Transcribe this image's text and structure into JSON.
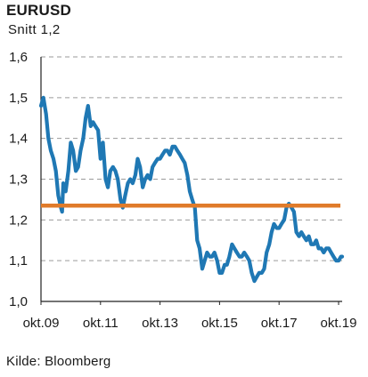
{
  "header": {
    "title": "EURUSD",
    "subtitle": "Snitt 1,2"
  },
  "footer": {
    "source": "Kilde: Bloomberg"
  },
  "chart_data": {
    "type": "line",
    "title": "EURUSD",
    "subtitle": "Snitt 1,2",
    "xlabel": "",
    "ylabel": "",
    "ylim": [
      1.0,
      1.6
    ],
    "xlim": [
      2009.75,
      2019.87
    ],
    "yticks": [
      1.0,
      1.1,
      1.2,
      1.3,
      1.4,
      1.5,
      1.6
    ],
    "ytick_labels": [
      "1,0",
      "1,1",
      "1,2",
      "1,3",
      "1,4",
      "1,5",
      "1,6"
    ],
    "xticks": [
      2009.75,
      2011.75,
      2013.75,
      2015.75,
      2017.75,
      2019.75
    ],
    "xtick_labels": [
      "okt.09",
      "okt.11",
      "okt.13",
      "okt.15",
      "okt.17",
      "okt.19"
    ],
    "grid": "horizontal dashed",
    "legend": "none",
    "colors": {
      "series": "#1f78b4",
      "average": "#e07b2a"
    },
    "series": [
      {
        "x": [
          2009.75,
          2009.83,
          2009.92,
          2010.0,
          2010.08,
          2010.17,
          2010.25,
          2010.33,
          2010.42,
          2010.46,
          2010.5,
          2010.58,
          2010.67,
          2010.75,
          2010.83,
          2010.92,
          2011.0,
          2011.08,
          2011.17,
          2011.25,
          2011.33,
          2011.42,
          2011.5,
          2011.58,
          2011.67,
          2011.75,
          2011.83,
          2011.92,
          2012.0,
          2012.08,
          2012.17,
          2012.25,
          2012.33,
          2012.42,
          2012.5,
          2012.58,
          2012.67,
          2012.75,
          2012.83,
          2012.92,
          2013.0,
          2013.08,
          2013.17,
          2013.25,
          2013.33,
          2013.42,
          2013.5,
          2013.58,
          2013.67,
          2013.75,
          2013.83,
          2013.92,
          2014.0,
          2014.08,
          2014.17,
          2014.25,
          2014.33,
          2014.42,
          2014.5,
          2014.58,
          2014.67,
          2014.75,
          2014.83,
          2014.92,
          2015.0,
          2015.08,
          2015.17,
          2015.25,
          2015.33,
          2015.42,
          2015.5,
          2015.58,
          2015.67,
          2015.75,
          2015.83,
          2015.92,
          2016.0,
          2016.08,
          2016.17,
          2016.25,
          2016.33,
          2016.42,
          2016.5,
          2016.58,
          2016.67,
          2016.75,
          2016.83,
          2016.92,
          2017.0,
          2017.08,
          2017.17,
          2017.25,
          2017.33,
          2017.42,
          2017.5,
          2017.58,
          2017.67,
          2017.75,
          2017.83,
          2017.92,
          2018.0,
          2018.08,
          2018.17,
          2018.25,
          2018.33,
          2018.42,
          2018.5,
          2018.58,
          2018.67,
          2018.75,
          2018.83,
          2018.92,
          2019.0,
          2019.08,
          2019.17,
          2019.25,
          2019.33,
          2019.42,
          2019.5,
          2019.58,
          2019.67,
          2019.75,
          2019.83,
          2019.87
        ],
        "values": [
          1.48,
          1.5,
          1.46,
          1.4,
          1.37,
          1.35,
          1.32,
          1.26,
          1.23,
          1.22,
          1.29,
          1.27,
          1.32,
          1.39,
          1.37,
          1.32,
          1.33,
          1.37,
          1.4,
          1.45,
          1.48,
          1.43,
          1.44,
          1.43,
          1.42,
          1.35,
          1.39,
          1.3,
          1.28,
          1.32,
          1.33,
          1.32,
          1.3,
          1.25,
          1.23,
          1.26,
          1.29,
          1.3,
          1.29,
          1.31,
          1.35,
          1.33,
          1.28,
          1.3,
          1.31,
          1.3,
          1.33,
          1.34,
          1.35,
          1.35,
          1.36,
          1.37,
          1.37,
          1.36,
          1.38,
          1.38,
          1.37,
          1.36,
          1.35,
          1.34,
          1.31,
          1.27,
          1.25,
          1.23,
          1.15,
          1.13,
          1.08,
          1.1,
          1.12,
          1.11,
          1.11,
          1.12,
          1.1,
          1.07,
          1.07,
          1.09,
          1.09,
          1.11,
          1.14,
          1.13,
          1.12,
          1.11,
          1.11,
          1.12,
          1.11,
          1.1,
          1.07,
          1.05,
          1.06,
          1.07,
          1.07,
          1.08,
          1.12,
          1.14,
          1.17,
          1.19,
          1.18,
          1.18,
          1.19,
          1.2,
          1.23,
          1.24,
          1.23,
          1.22,
          1.17,
          1.16,
          1.17,
          1.16,
          1.15,
          1.16,
          1.14,
          1.14,
          1.15,
          1.13,
          1.13,
          1.12,
          1.13,
          1.13,
          1.12,
          1.11,
          1.1,
          1.1,
          1.11,
          1.11
        ]
      }
    ],
    "reference_line": {
      "value": 1.235
    }
  }
}
